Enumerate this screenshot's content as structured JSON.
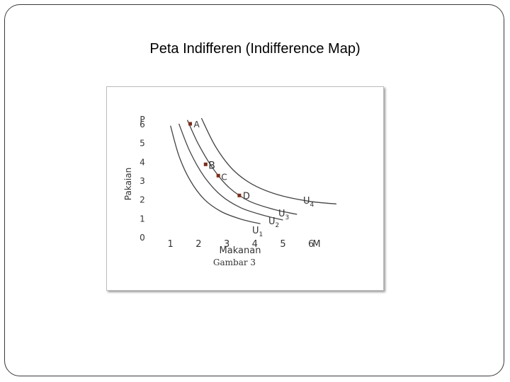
{
  "slide": {
    "title": "Peta Indifferen (Indifference Map)"
  },
  "chart_data": {
    "type": "line",
    "title": "Peta Indifferen (Indifference Map)",
    "caption": "Gambar 3",
    "xlabel": "Makanan",
    "ylabel": "Pakaian",
    "x_axis_symbol": "M",
    "y_axis_symbol": "P",
    "xlim": [
      0,
      6.5
    ],
    "ylim": [
      0,
      6.3
    ],
    "x_ticks": [
      1,
      2,
      3,
      4,
      5,
      6
    ],
    "y_ticks": [
      0,
      1,
      2,
      3,
      4,
      5,
      6
    ],
    "series": [
      {
        "name": "U1",
        "sub": "1",
        "x": [
          1.0,
          1.3,
          1.7,
          2.2,
          2.8,
          3.5,
          4.2
        ],
        "y": [
          5.9,
          4.3,
          3.0,
          2.0,
          1.35,
          0.95,
          0.7
        ]
      },
      {
        "name": "U2",
        "sub": "2",
        "x": [
          1.3,
          1.7,
          2.2,
          2.8,
          3.5,
          4.3,
          5.0
        ],
        "y": [
          6.0,
          4.5,
          3.2,
          2.2,
          1.55,
          1.15,
          0.9
        ]
      },
      {
        "name": "U3",
        "sub": "3",
        "x": [
          1.6,
          2.0,
          2.55,
          3.1,
          3.8,
          4.7,
          5.5
        ],
        "y": [
          6.2,
          4.9,
          3.55,
          2.6,
          1.9,
          1.45,
          1.2
        ]
      },
      {
        "name": "U4",
        "sub": "4",
        "x": [
          2.1,
          2.6,
          3.2,
          3.9,
          4.8,
          5.9,
          6.9
        ],
        "y": [
          6.3,
          4.8,
          3.6,
          2.8,
          2.25,
          1.9,
          1.75
        ]
      }
    ],
    "points": [
      {
        "label": "A",
        "x": 1.7,
        "y": 6.0
      },
      {
        "label": "B",
        "x": 2.25,
        "y": 3.85
      },
      {
        "label": "C",
        "x": 2.7,
        "y": 3.25
      },
      {
        "label": "D",
        "x": 3.45,
        "y": 2.2
      }
    ]
  }
}
